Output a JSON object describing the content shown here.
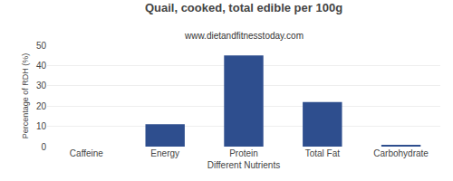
{
  "chart_data": {
    "type": "bar",
    "title": "Quail, cooked, total edible per 100g",
    "subtitle": "www.dietandfitnesstoday.com",
    "xlabel": "Different Nutrients",
    "ylabel": "Percentage of RDH (%)",
    "categories": [
      "Caffeine",
      "Energy",
      "Protein",
      "Total Fat",
      "Carbohydrate"
    ],
    "values": [
      0,
      11,
      45,
      22,
      0.5
    ],
    "color": "#2e4e8e",
    "ylim": [
      0,
      50
    ],
    "yticks": [
      0,
      10,
      20,
      30,
      40,
      50
    ],
    "grid": true
  }
}
